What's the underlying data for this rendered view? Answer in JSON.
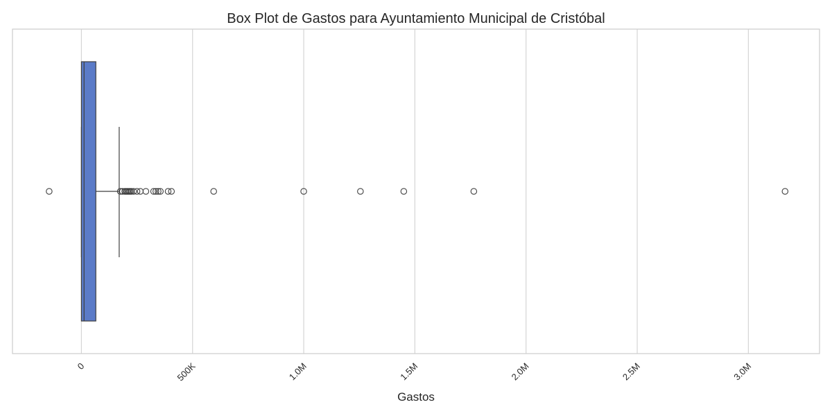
{
  "chart_data": {
    "type": "box",
    "orientation": "horizontal",
    "title": "Box Plot de Gastos para Ayuntamiento Municipal de Cristóbal",
    "xlabel": "Gastos",
    "ylabel": "",
    "xlim": [
      -310000,
      3320000
    ],
    "grid": "vertical",
    "ticks": [
      {
        "value": 0,
        "label": "0"
      },
      {
        "value": 500000,
        "label": "500K"
      },
      {
        "value": 1000000,
        "label": "1.0M"
      },
      {
        "value": 1500000,
        "label": "1.5M"
      },
      {
        "value": 2000000,
        "label": "2.0M"
      },
      {
        "value": 2500000,
        "label": "2.5M"
      },
      {
        "value": 3000000,
        "label": "3.0M"
      }
    ],
    "box": {
      "whisker_low": 0,
      "q1": 0,
      "median": 12000,
      "q3": 65000,
      "whisker_high": 170000
    },
    "outliers": [
      -145000,
      175000,
      185000,
      195000,
      200000,
      205000,
      210000,
      215000,
      220000,
      225000,
      235000,
      250000,
      265000,
      290000,
      325000,
      335000,
      345000,
      355000,
      390000,
      405000,
      595000,
      1000000,
      1255000,
      1450000,
      1765000,
      3165000
    ],
    "colors": {
      "box_fill": "#5b7bc8",
      "line": "#3f3f3f",
      "grid": "#d5d5d5",
      "frame": "#cccccc",
      "outlier_stroke": "#3f3f3f"
    }
  }
}
